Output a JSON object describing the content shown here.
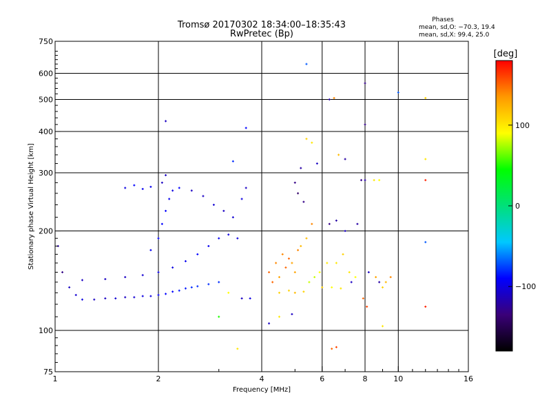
{
  "chart_data": {
    "type": "scatter",
    "title": "Tromsø 20170302 18:34:00–18:35:43",
    "subtitle": "RwPretec (Bp)",
    "xlabel": "Frequency [MHz]",
    "ylabel": "Stationary phase Virtual Height [km]",
    "x_scale": "log",
    "y_scale": "log",
    "xlim": [
      1,
      16
    ],
    "ylim": [
      75,
      750
    ],
    "x_ticks": [
      1,
      2,
      4,
      6,
      8,
      10,
      16
    ],
    "x_tick_labels": [
      "1",
      "2",
      "4",
      "6",
      "8",
      "10",
      "16"
    ],
    "y_ticks": [
      75,
      100,
      200,
      300,
      400,
      500,
      600,
      750
    ],
    "y_tick_labels": [
      "75",
      "100",
      "200",
      "300",
      "400",
      "500",
      "600",
      "750"
    ],
    "x_grid": [
      2,
      4,
      6,
      8,
      10
    ],
    "y_grid": [
      100,
      200,
      300,
      400,
      500,
      600
    ],
    "grid": true,
    "stats": {
      "heading": "Phases",
      "line_o": "mean, sd,O: −70.3, 19.4",
      "line_x": "mean, sd,X:  99.4, 25.0"
    },
    "colorbar": {
      "unit": "[deg]",
      "range": [
        -180,
        180
      ],
      "tick_values": [
        100,
        0,
        -100
      ],
      "tick_labels": [
        "100",
        "0",
        "−100"
      ],
      "colormap": [
        "#000000",
        "#3a0078",
        "#0000ff",
        "#00c8ff",
        "#00e07a",
        "#00ff00",
        "#ffff00",
        "#ff9900",
        "#ff0000"
      ]
    },
    "series": [
      {
        "points": [
          [
            1.05,
            150,
            -130
          ],
          [
            1.1,
            135,
            -110
          ],
          [
            1.15,
            128,
            -105
          ],
          [
            1.2,
            124,
            -100
          ],
          [
            1.3,
            124,
            -110
          ],
          [
            1.4,
            125,
            -110
          ],
          [
            1.5,
            125,
            -105
          ],
          [
            1.6,
            126,
            -110
          ],
          [
            1.7,
            126,
            -105
          ],
          [
            1.8,
            127,
            -100
          ],
          [
            1.9,
            127,
            -100
          ],
          [
            2.0,
            128,
            -95
          ],
          [
            2.1,
            129,
            -90
          ],
          [
            2.2,
            131,
            -90
          ],
          [
            2.3,
            132,
            -85
          ],
          [
            2.4,
            134,
            -85
          ],
          [
            2.5,
            135,
            -80
          ],
          [
            2.6,
            136,
            -80
          ],
          [
            2.8,
            138,
            -80
          ],
          [
            3.0,
            140,
            -80
          ],
          [
            1.2,
            142,
            -110
          ],
          [
            1.4,
            143,
            -110
          ],
          [
            1.6,
            145,
            -110
          ],
          [
            1.8,
            147,
            -105
          ],
          [
            2.0,
            150,
            -100
          ],
          [
            2.2,
            155,
            -100
          ],
          [
            2.4,
            162,
            -95
          ],
          [
            2.6,
            170,
            -90
          ],
          [
            2.8,
            180,
            -95
          ],
          [
            3.0,
            190,
            -95
          ],
          [
            3.2,
            195,
            -100
          ],
          [
            3.4,
            190,
            -100
          ],
          [
            1.9,
            175,
            -95
          ],
          [
            2.0,
            190,
            -90
          ],
          [
            2.05,
            210,
            -90
          ],
          [
            2.1,
            230,
            -90
          ],
          [
            2.15,
            250,
            -95
          ],
          [
            2.2,
            265,
            -100
          ],
          [
            2.05,
            280,
            -110
          ],
          [
            2.1,
            295,
            -110
          ],
          [
            1.6,
            270,
            -100
          ],
          [
            1.7,
            275,
            -90
          ],
          [
            1.8,
            268,
            -95
          ],
          [
            1.9,
            272,
            -95
          ],
          [
            2.3,
            270,
            -90
          ],
          [
            2.5,
            265,
            -110
          ],
          [
            2.7,
            255,
            -110
          ],
          [
            2.9,
            240,
            -105
          ],
          [
            3.1,
            230,
            -110
          ],
          [
            3.3,
            220,
            -105
          ],
          [
            3.5,
            250,
            -100
          ],
          [
            3.6,
            270,
            -110
          ],
          [
            1.02,
            180,
            -120
          ],
          [
            2.1,
            430,
            -110
          ],
          [
            3.6,
            410,
            -90
          ],
          [
            3.3,
            325,
            -80
          ],
          [
            3.0,
            110,
            50
          ],
          [
            3.2,
            130,
            90
          ],
          [
            3.5,
            125,
            -110
          ],
          [
            3.7,
            125,
            -100
          ],
          [
            4.2,
            150,
            150
          ],
          [
            4.4,
            160,
            140
          ],
          [
            4.6,
            170,
            140
          ],
          [
            4.8,
            165,
            150
          ],
          [
            5.0,
            150,
            130
          ],
          [
            5.2,
            180,
            120
          ],
          [
            5.4,
            190,
            120
          ],
          [
            4.3,
            140,
            150
          ],
          [
            4.5,
            145,
            130
          ],
          [
            4.7,
            155,
            150
          ],
          [
            4.9,
            160,
            130
          ],
          [
            5.1,
            175,
            140
          ],
          [
            4.5,
            130,
            110
          ],
          [
            4.8,
            132,
            110
          ],
          [
            5.0,
            130,
            120
          ],
          [
            5.3,
            131,
            110
          ],
          [
            5.5,
            140,
            80
          ],
          [
            5.7,
            145,
            80
          ],
          [
            5.9,
            150,
            90
          ],
          [
            6.2,
            160,
            100
          ],
          [
            5.0,
            280,
            -130
          ],
          [
            5.1,
            260,
            -140
          ],
          [
            5.2,
            310,
            -120
          ],
          [
            5.3,
            245,
            -130
          ],
          [
            5.4,
            380,
            110
          ],
          [
            5.6,
            370,
            100
          ],
          [
            5.8,
            320,
            -110
          ],
          [
            5.6,
            210,
            140
          ],
          [
            6.3,
            500,
            -120
          ],
          [
            6.5,
            505,
            140
          ],
          [
            6.7,
            340,
            120
          ],
          [
            7.0,
            330,
            -120
          ],
          [
            6.6,
            160,
            100
          ],
          [
            6.9,
            170,
            110
          ],
          [
            7.2,
            150,
            100
          ],
          [
            7.5,
            145,
            90
          ],
          [
            6.0,
            135,
            110
          ],
          [
            6.4,
            135,
            90
          ],
          [
            6.8,
            134,
            100
          ],
          [
            7.3,
            140,
            -110
          ],
          [
            6.3,
            210,
            -130
          ],
          [
            6.6,
            215,
            -120
          ],
          [
            7.0,
            200,
            -110
          ],
          [
            7.6,
            210,
            -120
          ],
          [
            7.8,
            285,
            -130
          ],
          [
            8.0,
            285,
            -120
          ],
          [
            8.0,
            560,
            -130
          ],
          [
            8.0,
            420,
            -130
          ],
          [
            8.5,
            285,
            100
          ],
          [
            8.8,
            285,
            90
          ],
          [
            8.2,
            150,
            -110
          ],
          [
            8.6,
            145,
            130
          ],
          [
            8.8,
            140,
            -120
          ],
          [
            9.0,
            135,
            110
          ],
          [
            9.2,
            140,
            120
          ],
          [
            9.5,
            145,
            140
          ],
          [
            5.4,
            640,
            -70
          ],
          [
            6.4,
            88,
            150
          ],
          [
            6.6,
            89,
            160
          ],
          [
            9.0,
            103,
            100
          ],
          [
            10.0,
            525,
            -70
          ],
          [
            12.0,
            505,
            110
          ],
          [
            12.0,
            330,
            100
          ],
          [
            12.0,
            285,
            170
          ],
          [
            12.0,
            185,
            -70
          ],
          [
            12.0,
            118,
            170
          ],
          [
            7.9,
            125,
            150
          ],
          [
            8.1,
            118,
            160
          ],
          [
            3.4,
            88,
            100
          ],
          [
            4.2,
            105,
            -110
          ],
          [
            4.5,
            110,
            100
          ],
          [
            4.9,
            112,
            -110
          ]
        ]
      }
    ]
  }
}
